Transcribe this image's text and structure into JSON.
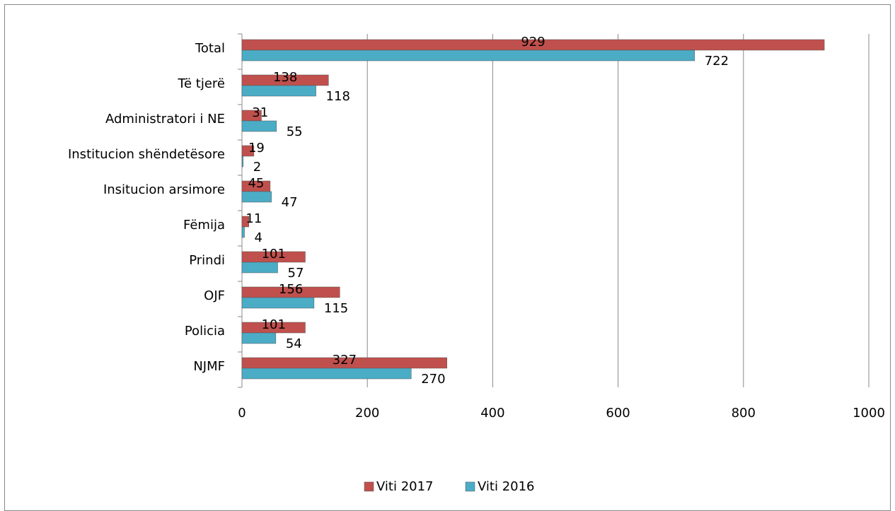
{
  "chart_data": {
    "type": "bar",
    "orientation": "horizontal",
    "categories": [
      "Total",
      "Të tjerë",
      "Administratori i NE",
      "Institucion shëndetësore",
      "Insitucion arsimore",
      "Fëmija",
      "Prindi",
      "OJF",
      "Policia",
      "NJMF"
    ],
    "series": [
      {
        "name": "Viti 2017",
        "color": "#c0504d",
        "values": [
          929,
          138,
          31,
          19,
          45,
          11,
          101,
          156,
          101,
          327
        ]
      },
      {
        "name": "Viti 2016",
        "color": "#4bacc6",
        "values": [
          722,
          118,
          55,
          2,
          47,
          4,
          57,
          115,
          54,
          270
        ]
      }
    ],
    "xlim": [
      0,
      1000
    ],
    "xticks": [
      0,
      200,
      400,
      600,
      800,
      1000
    ],
    "grid": true,
    "legend": "bottom"
  }
}
